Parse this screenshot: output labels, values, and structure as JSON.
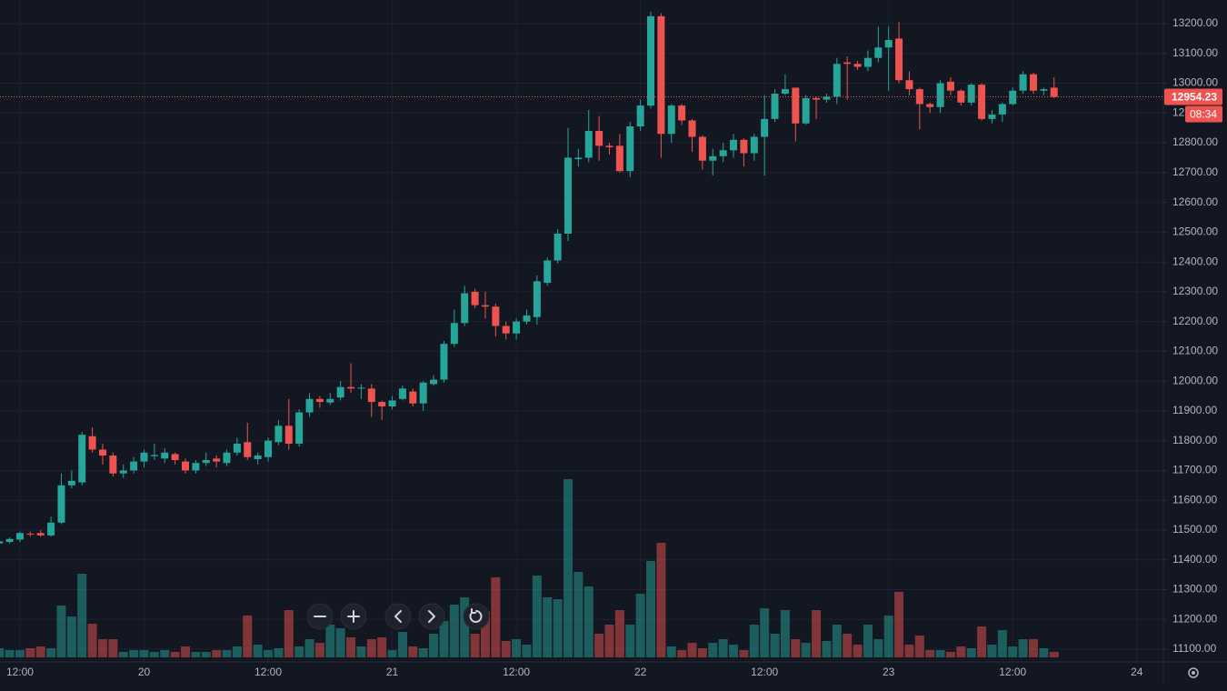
{
  "chart_data": {
    "type": "candlestick",
    "x": [
      10,
      11,
      12,
      13,
      14,
      15,
      16,
      17,
      18,
      19,
      20,
      21,
      22,
      23,
      24,
      25,
      26,
      27,
      28,
      29,
      30,
      31,
      32,
      33,
      34,
      35,
      36,
      37,
      38,
      39,
      40,
      41,
      42,
      43,
      44,
      45,
      46,
      47,
      48,
      49,
      50,
      51,
      52,
      53,
      54,
      55,
      56,
      57,
      58,
      59,
      60,
      61,
      62,
      63,
      64,
      65,
      66,
      67,
      68,
      69,
      70,
      71,
      72,
      73,
      74,
      75,
      76,
      77,
      78,
      79,
      80,
      81,
      82,
      83,
      84,
      85,
      86,
      87,
      88,
      89,
      90,
      91,
      92,
      93,
      94,
      95,
      96,
      97,
      98,
      99,
      100,
      101,
      102,
      103,
      104,
      105,
      106,
      107,
      108,
      109,
      110,
      111,
      112
    ],
    "open": [
      11455,
      11460,
      11468,
      11488,
      11490,
      11482,
      11525,
      11650,
      11660,
      11815,
      11770,
      11750,
      11690,
      11700,
      11730,
      11748,
      11740,
      11755,
      11730,
      11700,
      11725,
      11740,
      11725,
      11760,
      11795,
      11738,
      11745,
      11795,
      11850,
      11790,
      11895,
      11940,
      11928,
      11945,
      11980,
      11975,
      11975,
      11930,
      11915,
      11940,
      11965,
      11925,
      11990,
      12005,
      12125,
      12195,
      12300,
      12255,
      12250,
      12185,
      12160,
      12200,
      12215,
      12330,
      12405,
      12495,
      12745,
      12750,
      12840,
      12790,
      12790,
      12705,
      12855,
      12925,
      13225,
      12830,
      12925,
      12875,
      12820,
      12740,
      12755,
      12775,
      12810,
      12765,
      12820,
      12880,
      12965,
      12985,
      12865,
      12950,
      12945,
      12955,
      13070,
      13065,
      13055,
      13085,
      13120,
      13150,
      13010,
      12980,
      12930,
      12920,
      13005,
      12975,
      12935,
      12995,
      12880,
      12895,
      12930,
      12975,
      13030,
      12975,
      12985
    ],
    "high": [
      11470,
      11475,
      11495,
      11495,
      11500,
      11545,
      11690,
      11700,
      11830,
      11845,
      11790,
      11760,
      11720,
      11745,
      11770,
      11790,
      11775,
      11760,
      11740,
      11735,
      11760,
      11750,
      11770,
      11810,
      11860,
      11760,
      11810,
      11870,
      11940,
      11905,
      11960,
      11950,
      11960,
      12000,
      12060,
      11990,
      11990,
      11935,
      11950,
      11985,
      11975,
      12000,
      12020,
      12135,
      12240,
      12320,
      12310,
      12300,
      12260,
      12200,
      12210,
      12240,
      12355,
      12415,
      12510,
      12850,
      12780,
      12910,
      12890,
      12800,
      12830,
      12870,
      12945,
      13240,
      13235,
      12930,
      12930,
      12880,
      12825,
      12780,
      12800,
      12830,
      12815,
      12830,
      12960,
      12980,
      13030,
      12985,
      12960,
      12955,
      12965,
      13085,
      13090,
      13075,
      13110,
      13190,
      13190,
      13205,
      13040,
      12985,
      12935,
      13010,
      13020,
      12980,
      13000,
      13000,
      12910,
      12935,
      12985,
      13040,
      13035,
      12985,
      13020
    ],
    "low": [
      11450,
      11455,
      11460,
      11478,
      11478,
      11478,
      11520,
      11640,
      11650,
      11760,
      11720,
      11680,
      11675,
      11690,
      11710,
      11735,
      11725,
      11720,
      11690,
      11690,
      11715,
      11710,
      11715,
      11750,
      11735,
      11720,
      11730,
      11785,
      11770,
      11780,
      11880,
      11910,
      11920,
      11935,
      11960,
      11940,
      11880,
      11870,
      11905,
      11935,
      11915,
      11900,
      11985,
      11995,
      12115,
      12185,
      12245,
      12210,
      12150,
      12140,
      12140,
      12190,
      12190,
      12320,
      12395,
      12470,
      12720,
      12735,
      12740,
      12760,
      12700,
      12685,
      12840,
      12915,
      12750,
      12800,
      12860,
      12770,
      12710,
      12690,
      12735,
      12750,
      12720,
      12740,
      12690,
      12870,
      12960,
      12805,
      12860,
      12880,
      12935,
      12930,
      12945,
      13045,
      13040,
      13070,
      12975,
      13000,
      12960,
      12845,
      12900,
      12900,
      12960,
      12925,
      12925,
      12875,
      12865,
      12870,
      12925,
      12965,
      12965,
      12960,
      12950
    ],
    "close": [
      11462,
      11470,
      11490,
      11485,
      11482,
      11525,
      11650,
      11665,
      11820,
      11770,
      11750,
      11690,
      11700,
      11730,
      11760,
      11752,
      11760,
      11735,
      11700,
      11725,
      11735,
      11730,
      11760,
      11790,
      11745,
      11750,
      11800,
      11850,
      11790,
      11895,
      11940,
      11930,
      11940,
      11980,
      11975,
      11978,
      11930,
      11915,
      11935,
      11975,
      11925,
      11995,
      12005,
      12125,
      12195,
      12295,
      12255,
      12250,
      12185,
      12160,
      12200,
      12220,
      12335,
      12405,
      12495,
      12750,
      12750,
      12840,
      12790,
      12785,
      12705,
      12855,
      12925,
      13225,
      12830,
      12925,
      12875,
      12820,
      12740,
      12755,
      12775,
      12810,
      12765,
      12820,
      12880,
      12965,
      12980,
      12865,
      12950,
      12945,
      12955,
      13065,
      13065,
      13055,
      13085,
      13120,
      13145,
      13010,
      12980,
      12930,
      12920,
      13000,
      12975,
      12935,
      12995,
      12880,
      12895,
      12930,
      12975,
      13030,
      12975,
      12980,
      12954.23
    ],
    "volume": [
      10,
      8,
      8,
      10,
      12,
      10,
      57,
      45,
      92,
      37,
      20,
      20,
      6,
      8,
      8,
      6,
      8,
      6,
      12,
      6,
      6,
      8,
      8,
      12,
      46,
      14,
      8,
      10,
      52,
      12,
      20,
      16,
      36,
      32,
      22,
      12,
      20,
      22,
      8,
      28,
      12,
      10,
      26,
      40,
      58,
      66,
      26,
      50,
      88,
      18,
      20,
      14,
      90,
      66,
      64,
      196,
      94,
      78,
      26,
      36,
      52,
      36,
      70,
      106,
      126,
      12,
      8,
      16,
      10,
      16,
      20,
      14,
      8,
      36,
      54,
      26,
      52,
      20,
      16,
      52,
      18,
      36,
      26,
      14,
      36,
      20,
      46,
      72,
      14,
      24,
      8,
      8,
      6,
      12,
      10,
      34,
      14,
      30,
      12,
      20,
      20,
      10,
      6
    ],
    "up_color": "#26a69a",
    "down_color": "#ef5350",
    "xlim": [
      10.07,
      122.57
    ],
    "xticks": [
      {
        "value": 12,
        "label": "12:00"
      },
      {
        "value": 24,
        "label": "20"
      },
      {
        "value": 36,
        "label": "12:00"
      },
      {
        "value": 48,
        "label": "21"
      },
      {
        "value": 60,
        "label": "12:00"
      },
      {
        "value": 72,
        "label": "22"
      },
      {
        "value": 84,
        "label": "12:00"
      },
      {
        "value": 96,
        "label": "23"
      },
      {
        "value": 108,
        "label": "12:00"
      },
      {
        "value": 120,
        "label": "24"
      }
    ],
    "ylim": [
      11057.3,
      13279.4
    ],
    "yticks": [
      {
        "value": 11100,
        "label": "11100.00"
      },
      {
        "value": 11200,
        "label": "11200.00"
      },
      {
        "value": 11300,
        "label": "11300.00"
      },
      {
        "value": 11400,
        "label": "11400.00"
      },
      {
        "value": 11500,
        "label": "11500.00"
      },
      {
        "value": 11600,
        "label": "11600.00"
      },
      {
        "value": 11700,
        "label": "11700.00"
      },
      {
        "value": 11800,
        "label": "11800.00"
      },
      {
        "value": 11900,
        "label": "11900.00"
      },
      {
        "value": 12000,
        "label": "12000.00"
      },
      {
        "value": 12100,
        "label": "12100.00"
      },
      {
        "value": 12200,
        "label": "12200.00"
      },
      {
        "value": 12300,
        "label": "12300.00"
      },
      {
        "value": 12400,
        "label": "12400.00"
      },
      {
        "value": 12500,
        "label": "12500.00"
      },
      {
        "value": 12600,
        "label": "12600.00"
      },
      {
        "value": 12700,
        "label": "12700.00"
      },
      {
        "value": 12800,
        "label": "12800.00"
      },
      {
        "value": 12900,
        "label": "12900.00"
      },
      {
        "value": 13000,
        "label": "13000.00"
      },
      {
        "value": 13100,
        "label": "13100.00"
      },
      {
        "value": 13200,
        "label": "13200.00"
      }
    ],
    "vlim": [
      0,
      723
    ],
    "grid": true,
    "countdown": "08:34"
  }
}
